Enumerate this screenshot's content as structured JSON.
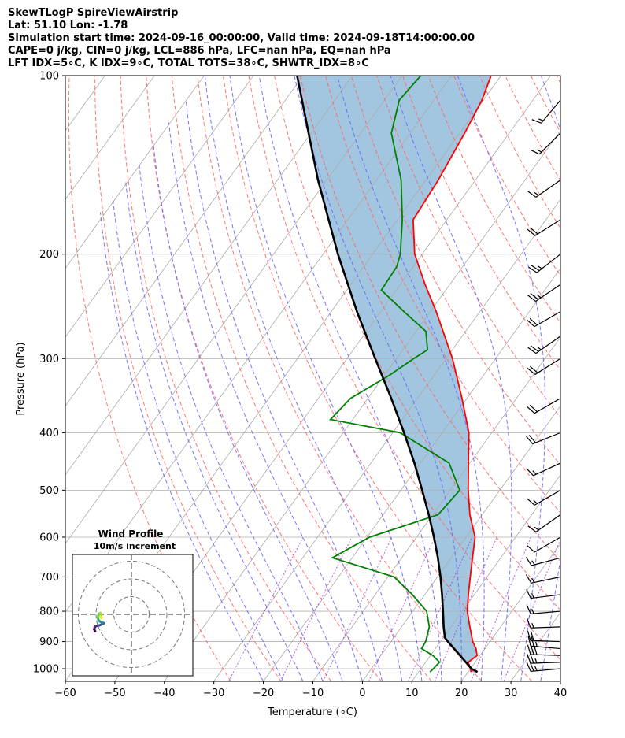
{
  "header": {
    "line1": "SkewTLogP SpireViewAirstrip",
    "line2": "Lat: 51.10   Lon: -1.78",
    "line3": "Simulation start time: 2024-09-16_00:00:00, Valid time: 2024-09-18T14:00:00.00",
    "line4": "CAPE=0 j/kg, CIN=0 j/kg, LCL=886 hPa, LFC=nan hPa, EQ=nan hPa",
    "line5": "LFT IDX=5∘C, K IDX=9∘C, TOTAL TOTS=38∘C, SHWTR_IDX=8∘C"
  },
  "chart_data": {
    "type": "skewt",
    "xlabel": "Temperature (∘C)",
    "ylabel": "Pressure (hPa)",
    "xlim": [
      -60,
      40
    ],
    "ylim": [
      1050,
      100
    ],
    "x_ticks": [
      -60,
      -50,
      -40,
      -30,
      -20,
      -10,
      0,
      10,
      20,
      30,
      40
    ],
    "y_ticks": [
      1000,
      900,
      800,
      700,
      600,
      500,
      400,
      300,
      200,
      100
    ],
    "colors": {
      "temperature": "#ff0000",
      "dewpoint": "#008000",
      "parcel": "#000000",
      "fill": "#a2c6e0",
      "dry_adiabats": "#ff6666",
      "moist_adiabats": "#6666ff",
      "mixing_ratio": "#9933cc",
      "isotherms": "#aaaaaa"
    },
    "temperature_profile": [
      {
        "p": 1013,
        "t": 20.6
      },
      {
        "p": 1000,
        "t": 20.0
      },
      {
        "p": 975,
        "t": 18.6
      },
      {
        "p": 950,
        "t": 19.4
      },
      {
        "p": 925,
        "t": 18.2
      },
      {
        "p": 900,
        "t": 16.5
      },
      {
        "p": 850,
        "t": 13.8
      },
      {
        "p": 800,
        "t": 11.0
      },
      {
        "p": 750,
        "t": 8.8
      },
      {
        "p": 700,
        "t": 6.6
      },
      {
        "p": 650,
        "t": 4.3
      },
      {
        "p": 600,
        "t": 1.8
      },
      {
        "p": 550,
        "t": -2.5
      },
      {
        "p": 500,
        "t": -6.4
      },
      {
        "p": 450,
        "t": -10.3
      },
      {
        "p": 400,
        "t": -14.6
      },
      {
        "p": 350,
        "t": -21.0
      },
      {
        "p": 300,
        "t": -28.7
      },
      {
        "p": 250,
        "t": -38.8
      },
      {
        "p": 225,
        "t": -45.0
      },
      {
        "p": 200,
        "t": -51.5
      },
      {
        "p": 175,
        "t": -56.8
      },
      {
        "p": 150,
        "t": -57.5
      },
      {
        "p": 125,
        "t": -59.0
      },
      {
        "p": 110,
        "t": -60.3
      },
      {
        "p": 100,
        "t": -62.0
      }
    ],
    "dewpoint_profile": [
      {
        "p": 1013,
        "t": 12.3
      },
      {
        "p": 1000,
        "t": 12.5
      },
      {
        "p": 975,
        "t": 12.8
      },
      {
        "p": 950,
        "t": 10.5
      },
      {
        "p": 925,
        "t": 7.2
      },
      {
        "p": 900,
        "t": 7.0
      },
      {
        "p": 850,
        "t": 5.6
      },
      {
        "p": 800,
        "t": 2.8
      },
      {
        "p": 750,
        "t": -2.5
      },
      {
        "p": 700,
        "t": -8.8
      },
      {
        "p": 650,
        "t": -24.0
      },
      {
        "p": 600,
        "t": -19.5
      },
      {
        "p": 550,
        "t": -8.9
      },
      {
        "p": 500,
        "t": -8.1
      },
      {
        "p": 450,
        "t": -14.2
      },
      {
        "p": 400,
        "t": -28.5
      },
      {
        "p": 380,
        "t": -44.5
      },
      {
        "p": 350,
        "t": -43.5
      },
      {
        "p": 320,
        "t": -39.0
      },
      {
        "p": 300,
        "t": -36.5
      },
      {
        "p": 290,
        "t": -35.0
      },
      {
        "p": 270,
        "t": -38.0
      },
      {
        "p": 250,
        "t": -45.3
      },
      {
        "p": 230,
        "t": -53.0
      },
      {
        "p": 210,
        "t": -53.3
      },
      {
        "p": 200,
        "t": -54.4
      },
      {
        "p": 175,
        "t": -59.0
      },
      {
        "p": 150,
        "t": -65.0
      },
      {
        "p": 125,
        "t": -73.8
      },
      {
        "p": 110,
        "t": -77.0
      },
      {
        "p": 100,
        "t": -76.2
      }
    ],
    "parcel_profile": [
      {
        "p": 1013,
        "t": 21.9
      },
      {
        "p": 1000,
        "t": 20.2
      },
      {
        "p": 950,
        "t": 16.0
      },
      {
        "p": 900,
        "t": 11.5
      },
      {
        "p": 886,
        "t": 10.3
      },
      {
        "p": 850,
        "t": 8.5
      },
      {
        "p": 800,
        "t": 6.1
      },
      {
        "p": 750,
        "t": 3.5
      },
      {
        "p": 700,
        "t": 0.6
      },
      {
        "p": 650,
        "t": -2.7
      },
      {
        "p": 600,
        "t": -6.5
      },
      {
        "p": 550,
        "t": -10.8
      },
      {
        "p": 500,
        "t": -15.7
      },
      {
        "p": 450,
        "t": -21.2
      },
      {
        "p": 400,
        "t": -27.7
      },
      {
        "p": 350,
        "t": -35.3
      },
      {
        "p": 300,
        "t": -44.3
      },
      {
        "p": 250,
        "t": -54.8
      },
      {
        "p": 200,
        "t": -67.0
      },
      {
        "p": 150,
        "t": -81.8
      },
      {
        "p": 100,
        "t": -101.2
      }
    ],
    "wind_barbs": [
      {
        "p": 1000,
        "direction": 265,
        "speed": 12
      },
      {
        "p": 975,
        "direction": 268,
        "speed": 14
      },
      {
        "p": 950,
        "direction": 272,
        "speed": 15
      },
      {
        "p": 925,
        "direction": 275,
        "speed": 13
      },
      {
        "p": 900,
        "direction": 272,
        "speed": 10
      },
      {
        "p": 850,
        "direction": 268,
        "speed": 9
      },
      {
        "p": 800,
        "direction": 265,
        "speed": 8
      },
      {
        "p": 750,
        "direction": 263,
        "speed": 8
      },
      {
        "p": 700,
        "direction": 258,
        "speed": 8
      },
      {
        "p": 650,
        "direction": 255,
        "speed": 7
      },
      {
        "p": 600,
        "direction": 240,
        "speed": 6
      },
      {
        "p": 550,
        "direction": 235,
        "speed": 7
      },
      {
        "p": 500,
        "direction": 240,
        "speed": 8
      },
      {
        "p": 450,
        "direction": 245,
        "speed": 9
      },
      {
        "p": 400,
        "direction": 248,
        "speed": 10
      },
      {
        "p": 350,
        "direction": 240,
        "speed": 10
      },
      {
        "p": 300,
        "direction": 238,
        "speed": 11
      },
      {
        "p": 275,
        "direction": 235,
        "speed": 12
      },
      {
        "p": 250,
        "direction": 240,
        "speed": 11
      },
      {
        "p": 225,
        "direction": 236,
        "speed": 13
      },
      {
        "p": 200,
        "direction": 232,
        "speed": 13
      },
      {
        "p": 175,
        "direction": 238,
        "speed": 11
      },
      {
        "p": 150,
        "direction": 235,
        "speed": 9
      },
      {
        "p": 125,
        "direction": 225,
        "speed": 8
      },
      {
        "p": 110,
        "direction": 220,
        "speed": 7
      }
    ],
    "hodograph": {
      "title": "Wind Profile",
      "subtitle": "10m/s increment",
      "rings_ms": [
        10,
        20,
        30
      ],
      "points": [
        {
          "u": -20.5,
          "v": -9.5
        },
        {
          "u": -21.0,
          "v": -8.5
        },
        {
          "u": -20.7,
          "v": -7.0
        },
        {
          "u": -19.5,
          "v": -6.5
        },
        {
          "u": -18.0,
          "v": -6.2
        },
        {
          "u": -16.5,
          "v": -5.5
        },
        {
          "u": -15.5,
          "v": -5.0
        },
        {
          "u": -16.5,
          "v": -4.7
        },
        {
          "u": -17.8,
          "v": -4.0
        },
        {
          "u": -18.5,
          "v": -3.5
        },
        {
          "u": -19.0,
          "v": -2.0
        },
        {
          "u": -18.5,
          "v": 0.2
        },
        {
          "u": -17.5,
          "v": 0.8
        },
        {
          "u": -17.0,
          "v": -0.3
        },
        {
          "u": -17.8,
          "v": -1.3
        },
        {
          "u": -17.0,
          "v": -2.0
        }
      ]
    }
  }
}
